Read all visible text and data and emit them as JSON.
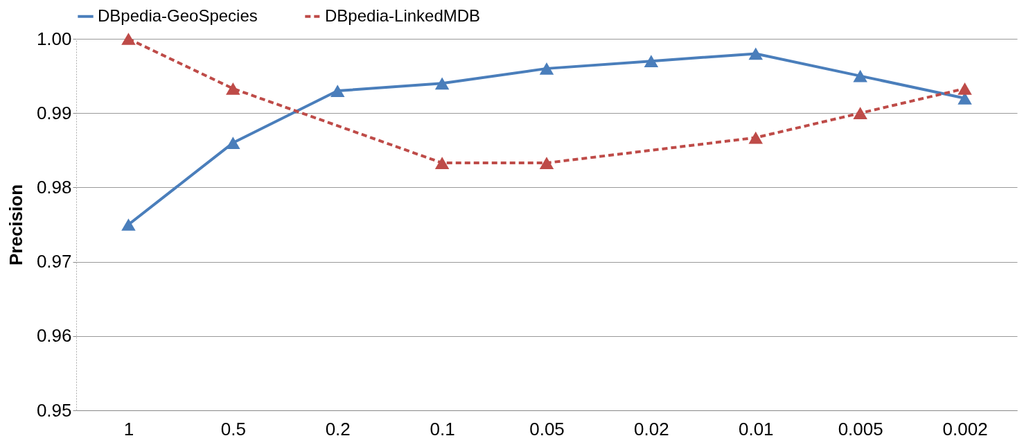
{
  "chart_data": {
    "type": "line",
    "ylabel": "Precision",
    "categories": [
      "1",
      "0.5",
      "0.2",
      "0.1",
      "0.05",
      "0.02",
      "0.01",
      "0.005",
      "0.002"
    ],
    "series": [
      {
        "name": "DBpedia-GeoSpecies",
        "color": "#4a7ebb",
        "line_style": "solid",
        "values": [
          0.975,
          0.986,
          0.993,
          0.994,
          0.996,
          0.997,
          0.998,
          0.995,
          0.992
        ]
      },
      {
        "name": "DBpedia-LinkedMDB",
        "color": "#be4b48",
        "line_style": "dashed",
        "values": [
          1.0,
          0.9933,
          null,
          0.9833,
          0.9833,
          null,
          0.9867,
          0.99,
          0.9933
        ]
      }
    ],
    "ylim": [
      0.95,
      1.0
    ],
    "yticks": [
      0.95,
      0.96,
      0.97,
      0.98,
      0.99,
      {
        "value": 1.0,
        "label": "1.00"
      }
    ],
    "grid": "y",
    "legend": "top",
    "marker": "triangle"
  }
}
